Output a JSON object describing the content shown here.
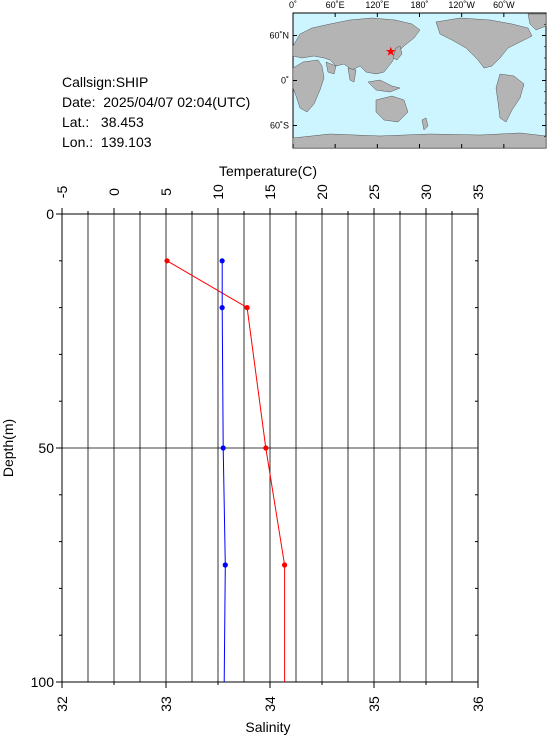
{
  "info": {
    "callsign_label": "Callsign:",
    "callsign": "SHIP",
    "date_label": "Date:",
    "date": "2025/04/07 02:04(UTC)",
    "lat_label": "Lat.:",
    "lat": "38.453",
    "lon_label": "Lon.:",
    "lon": "139.103"
  },
  "map": {
    "top_labels": [
      "0˚",
      "60˚E",
      "120˚E",
      "180˚",
      "120˚W",
      "60˚W"
    ],
    "left_labels": [
      "60˚N",
      "0˚",
      "60˚S"
    ],
    "ocean_color": "#ccf5ff",
    "land_color": "#b4b4b4",
    "marker_color": "#ff0000",
    "marker": "star-icon"
  },
  "chart_data": {
    "type": "line",
    "ylabel": "Depth(m)",
    "ylim": [
      100,
      0
    ],
    "yticks": [
      0,
      50,
      100
    ],
    "temperature_axis": {
      "label": "Temperature(C)",
      "range": [
        -5,
        35
      ],
      "ticks": [
        -5,
        0,
        5,
        10,
        15,
        20,
        25,
        30,
        35
      ]
    },
    "salinity_axis": {
      "label": "Salinity",
      "range": [
        32,
        36
      ],
      "ticks": [
        32,
        33,
        34,
        35,
        36
      ]
    },
    "grid": true,
    "series": [
      {
        "variable": "temperature",
        "axis": "temperature_axis",
        "color": "#ff0000",
        "points": [
          {
            "depth": 10,
            "value": 5.1
          },
          {
            "depth": 20,
            "value": 12.8
          },
          {
            "depth": 50,
            "value": 14.6
          },
          {
            "depth": 75,
            "value": 16.4
          },
          {
            "depth": 100,
            "value": 16.4
          }
        ],
        "markers_at": [
          10,
          20,
          50,
          75
        ]
      },
      {
        "variable": "salinity",
        "axis": "salinity_axis",
        "color": "#0000ff",
        "points": [
          {
            "depth": 10,
            "value": 33.54
          },
          {
            "depth": 20,
            "value": 33.54
          },
          {
            "depth": 50,
            "value": 33.55
          },
          {
            "depth": 75,
            "value": 33.57
          },
          {
            "depth": 100,
            "value": 33.56
          }
        ],
        "markers_at": [
          10,
          20,
          50,
          75
        ]
      }
    ]
  }
}
